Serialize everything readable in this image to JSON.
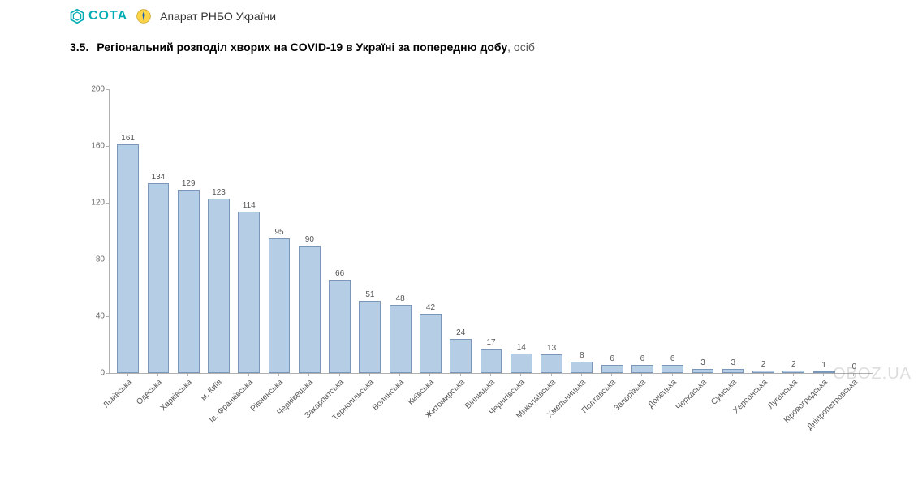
{
  "header": {
    "cota_text": "COTA",
    "org_title": "Апарат РНБО України"
  },
  "section": {
    "number": "3.5.",
    "title_bold": "Регіональний розподіл хворих на COVID-19 в Україні за попередню добу",
    "unit": ", осіб"
  },
  "watermark": "OBOZ.UA",
  "chart": {
    "type": "bar",
    "ylim": [
      0,
      200
    ],
    "ytick_step": 40,
    "yticks": [
      0,
      40,
      80,
      120,
      160,
      200
    ],
    "bar_fill": "#b6cde6",
    "bar_border": "#7a96b8",
    "axis_color": "#b0b0b0",
    "background_color": "#ffffff",
    "value_fontsize": 10,
    "label_fontsize": 10,
    "label_rotation_deg": -45,
    "categories": [
      "Львівська",
      "Одеська",
      "Харківська",
      "м. Київ",
      "Ів.-Франківська",
      "Рівненська",
      "Чернівецька",
      "Закарпатська",
      "Тернопільська",
      "Волинська",
      "Київська",
      "Житомирська",
      "Вінницька",
      "Чернігівська",
      "Миколаївська",
      "Хмельницька",
      "Полтавська",
      "Запорізька",
      "Донецька",
      "Черкаська",
      "Сумська",
      "Херсонська",
      "Луганська",
      "Кіровоградська",
      "Дніпропетровська"
    ],
    "values": [
      161,
      134,
      129,
      123,
      114,
      95,
      90,
      66,
      51,
      48,
      42,
      24,
      17,
      14,
      13,
      8,
      6,
      6,
      6,
      3,
      3,
      2,
      2,
      1,
      0
    ]
  }
}
